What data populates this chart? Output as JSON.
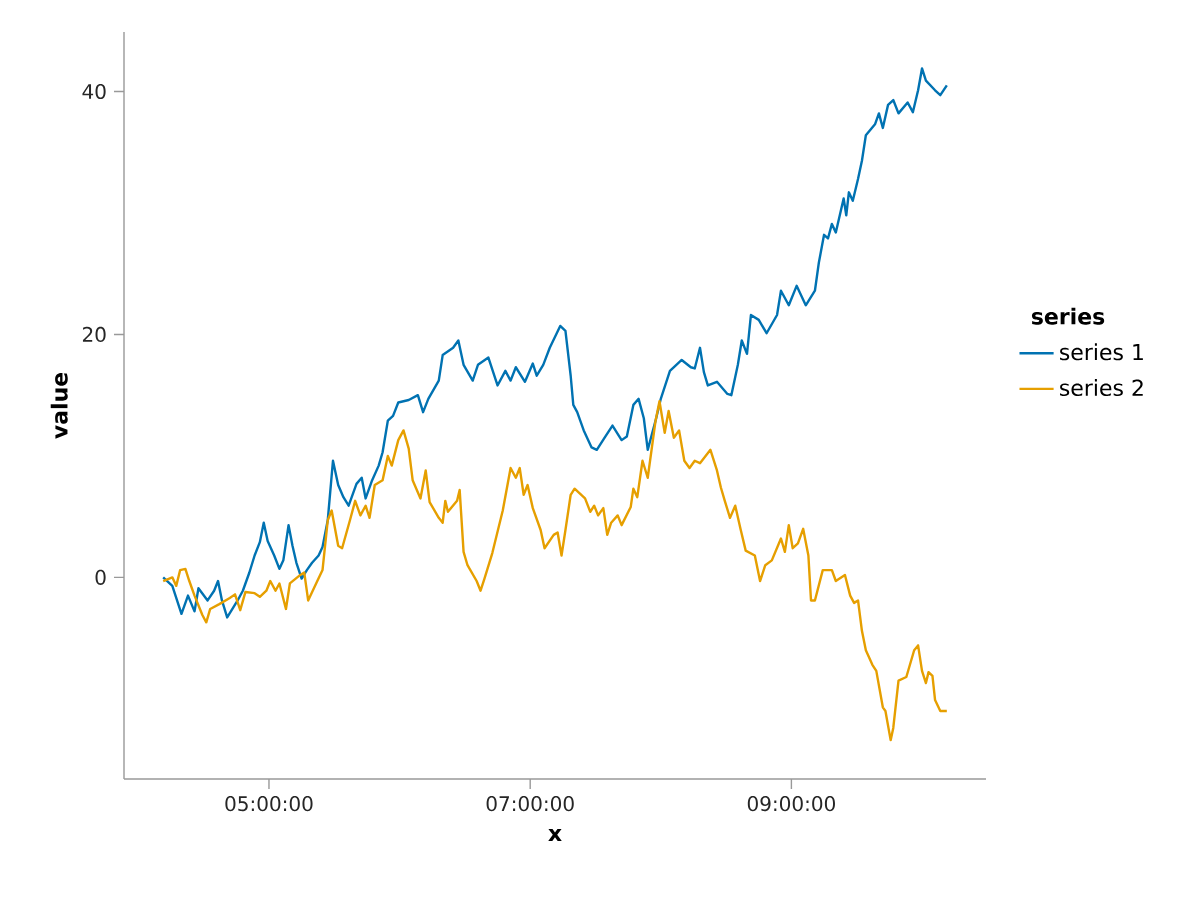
{
  "chart_data": {
    "type": "line",
    "xlabel": "x",
    "ylabel": "value",
    "legend_title": "series",
    "legend": "right",
    "xlim": [
      3.89,
      10.49
    ],
    "ylim": [
      -16.6,
      44.9
    ],
    "xticks": [
      {
        "value": 5,
        "label": "05:00:00"
      },
      {
        "value": 7,
        "label": "07:00:00"
      },
      {
        "value": 9,
        "label": "09:00:00"
      }
    ],
    "yticks": [
      0,
      20,
      40
    ],
    "series": [
      {
        "name": "series 1",
        "color": "#0072b2",
        "x": [
          4.19,
          4.26,
          4.33,
          4.38,
          4.43,
          4.46,
          4.53,
          4.58,
          4.61,
          4.64,
          4.68,
          4.76,
          4.8,
          4.85,
          4.89,
          4.93,
          4.96,
          4.99,
          5.04,
          5.08,
          5.11,
          5.15,
          5.18,
          5.21,
          5.25,
          5.29,
          5.33,
          5.38,
          5.41,
          5.45,
          5.49,
          5.53,
          5.57,
          5.61,
          5.67,
          5.71,
          5.74,
          5.79,
          5.84,
          5.87,
          5.91,
          5.95,
          5.99,
          6.07,
          6.14,
          6.18,
          6.22,
          6.3,
          6.33,
          6.41,
          6.45,
          6.49,
          6.56,
          6.6,
          6.68,
          6.75,
          6.81,
          6.85,
          6.89,
          6.96,
          7.02,
          7.05,
          7.1,
          7.15,
          7.23,
          7.27,
          7.31,
          7.33,
          7.36,
          7.41,
          7.47,
          7.51,
          7.57,
          7.63,
          7.7,
          7.74,
          7.79,
          7.83,
          7.87,
          7.9,
          7.96,
          8.0,
          8.07,
          8.16,
          8.23,
          8.26,
          8.3,
          8.33,
          8.36,
          8.43,
          8.51,
          8.54,
          8.59,
          8.62,
          8.66,
          8.69,
          8.75,
          8.81,
          8.89,
          8.92,
          8.98,
          9.04,
          9.11,
          9.18,
          9.21,
          9.25,
          9.28,
          9.31,
          9.34,
          9.4,
          9.42,
          9.44,
          9.47,
          9.51,
          9.54,
          9.57,
          9.64,
          9.67,
          9.7,
          9.74,
          9.78,
          9.82,
          9.89,
          9.93,
          9.97,
          10.0,
          10.03,
          10.1,
          10.14,
          10.19
        ],
        "values": [
          0,
          -0.7,
          -3.0,
          -1.5,
          -2.8,
          -0.9,
          -1.9,
          -1.1,
          -0.3,
          -1.9,
          -3.3,
          -1.9,
          -1.1,
          0.4,
          1.8,
          2.9,
          4.5,
          3.0,
          1.8,
          0.7,
          1.4,
          4.3,
          2.6,
          1.2,
          -0.1,
          0.6,
          1.2,
          1.8,
          2.5,
          4.7,
          9.6,
          7.6,
          6.6,
          5.9,
          7.7,
          8.2,
          6.5,
          8.0,
          9.2,
          10.3,
          12.9,
          13.3,
          14.4,
          14.6,
          15.0,
          13.6,
          14.7,
          16.2,
          18.3,
          18.9,
          19.5,
          17.5,
          16.2,
          17.5,
          18.1,
          15.8,
          17.0,
          16.2,
          17.3,
          16.1,
          17.6,
          16.6,
          17.5,
          18.9,
          20.7,
          20.3,
          16.6,
          14.2,
          13.6,
          12.1,
          10.7,
          10.5,
          11.5,
          12.5,
          11.3,
          11.6,
          14.2,
          14.7,
          13.1,
          10.5,
          12.9,
          14.7,
          17.0,
          17.9,
          17.3,
          17.2,
          18.9,
          16.9,
          15.8,
          16.1,
          15.1,
          15.0,
          17.5,
          19.5,
          18.4,
          21.6,
          21.2,
          20.1,
          21.6,
          23.6,
          22.4,
          24.0,
          22.4,
          23.6,
          25.9,
          28.2,
          27.9,
          29.1,
          28.4,
          31.2,
          29.8,
          31.7,
          31.0,
          32.8,
          34.3,
          36.4,
          37.3,
          38.2,
          37.0,
          38.9,
          39.3,
          38.2,
          39.1,
          38.3,
          40.1,
          41.9,
          40.9,
          40.1,
          39.7,
          40.5
        ]
      },
      {
        "name": "series 2",
        "color": "#e69f00",
        "x": [
          4.19,
          4.26,
          4.29,
          4.32,
          4.36,
          4.39,
          4.43,
          4.49,
          4.52,
          4.55,
          4.62,
          4.7,
          4.74,
          4.78,
          4.82,
          4.89,
          4.93,
          4.98,
          5.01,
          5.05,
          5.08,
          5.13,
          5.16,
          5.24,
          5.27,
          5.3,
          5.37,
          5.41,
          5.45,
          5.48,
          5.53,
          5.56,
          5.62,
          5.66,
          5.7,
          5.74,
          5.77,
          5.81,
          5.87,
          5.91,
          5.94,
          5.99,
          6.03,
          6.07,
          6.1,
          6.16,
          6.2,
          6.23,
          6.3,
          6.33,
          6.35,
          6.37,
          6.44,
          6.46,
          6.49,
          6.52,
          6.59,
          6.62,
          6.65,
          6.71,
          6.79,
          6.85,
          6.89,
          6.92,
          6.95,
          6.98,
          7.02,
          7.08,
          7.11,
          7.18,
          7.21,
          7.24,
          7.27,
          7.31,
          7.34,
          7.42,
          7.46,
          7.49,
          7.52,
          7.56,
          7.59,
          7.62,
          7.67,
          7.7,
          7.77,
          7.79,
          7.82,
          7.86,
          7.9,
          7.96,
          7.99,
          8.03,
          8.06,
          8.1,
          8.14,
          8.18,
          8.22,
          8.26,
          8.3,
          8.38,
          8.43,
          8.46,
          8.49,
          8.53,
          8.57,
          8.61,
          8.65,
          8.72,
          8.76,
          8.8,
          8.85,
          8.92,
          8.95,
          8.98,
          9.01,
          9.05,
          9.09,
          9.13,
          9.15,
          9.18,
          9.24,
          9.31,
          9.34,
          9.41,
          9.45,
          9.48,
          9.51,
          9.54,
          9.57,
          9.62,
          9.65,
          9.7,
          9.72,
          9.76,
          9.78,
          9.82,
          9.88,
          9.94,
          9.97,
          10.0,
          10.03,
          10.05,
          10.08,
          10.1,
          10.14,
          10.19
        ],
        "values": [
          -0.3,
          0,
          -0.7,
          0.6,
          0.7,
          -0.3,
          -1.5,
          -3.1,
          -3.7,
          -2.6,
          -2.2,
          -1.7,
          -1.4,
          -2.7,
          -1.2,
          -1.3,
          -1.6,
          -1.1,
          -0.3,
          -1.1,
          -0.5,
          -2.6,
          -0.5,
          0.2,
          0.4,
          -1.9,
          -0.3,
          0.6,
          4.7,
          5.5,
          2.6,
          2.4,
          4.7,
          6.3,
          5.1,
          5.9,
          4.9,
          7.6,
          8.0,
          10.0,
          9.2,
          11.3,
          12.1,
          10.6,
          8.0,
          6.5,
          8.8,
          6.2,
          4.9,
          4.5,
          6.3,
          5.4,
          6.3,
          7.2,
          2.1,
          1.0,
          -0.3,
          -1.1,
          -0.1,
          2.0,
          5.5,
          9.0,
          8.2,
          9.0,
          6.8,
          7.6,
          5.7,
          3.9,
          2.4,
          3.5,
          3.7,
          1.8,
          3.9,
          6.8,
          7.3,
          6.5,
          5.4,
          5.9,
          5.1,
          5.7,
          3.5,
          4.5,
          5.1,
          4.3,
          5.8,
          7.3,
          6.6,
          9.6,
          8.2,
          12.9,
          14.5,
          11.9,
          13.7,
          11.5,
          12.1,
          9.6,
          9.0,
          9.6,
          9.4,
          10.5,
          8.8,
          7.4,
          6.3,
          4.9,
          5.9,
          4.0,
          2.2,
          1.8,
          -0.3,
          1.0,
          1.4,
          3.2,
          2.1,
          4.3,
          2.4,
          2.8,
          4.0,
          1.8,
          -1.9,
          -1.9,
          0.6,
          0.6,
          -0.3,
          0.2,
          -1.5,
          -2.1,
          -1.9,
          -4.4,
          -6.0,
          -7.2,
          -7.7,
          -10.7,
          -11.0,
          -13.4,
          -12.4,
          -8.5,
          -8.2,
          -6.0,
          -5.6,
          -7.7,
          -8.7,
          -7.8,
          -8.1,
          -10.1,
          -11.0,
          -11.0
        ]
      }
    ]
  }
}
